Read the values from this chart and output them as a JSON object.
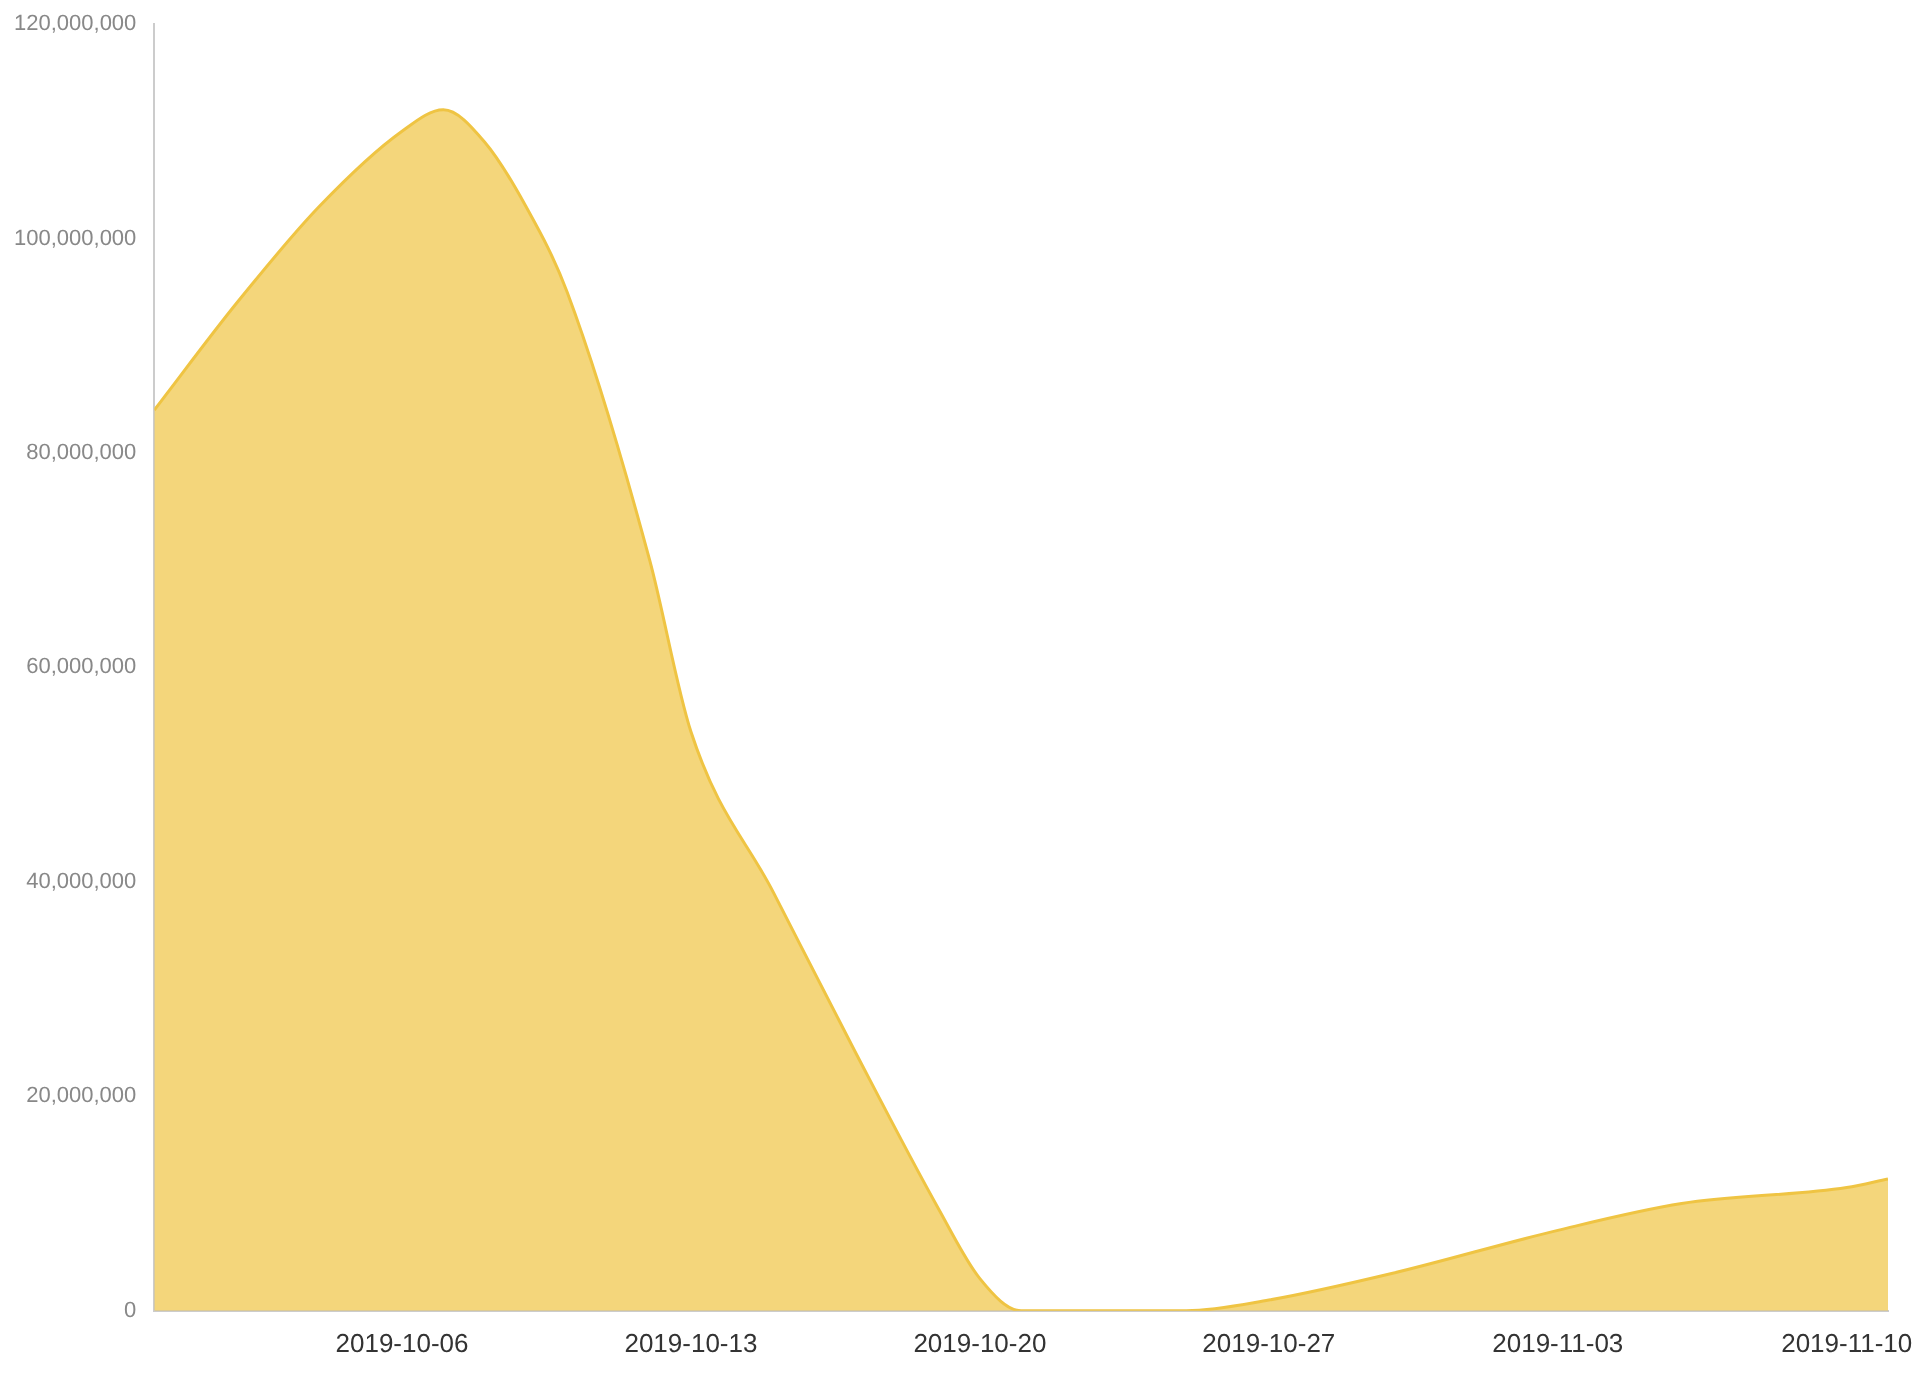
{
  "chart_data": {
    "type": "area",
    "x": [
      "2019-09-30",
      "2019-10-02",
      "2019-10-04",
      "2019-10-06",
      "2019-10-07",
      "2019-10-08",
      "2019-10-09",
      "2019-10-10",
      "2019-10-12",
      "2019-10-13",
      "2019-10-15",
      "2019-10-17",
      "2019-10-19",
      "2019-10-20",
      "2019-10-21",
      "2019-10-23",
      "2019-10-25",
      "2019-10-27",
      "2019-10-30",
      "2019-11-03",
      "2019-11-06",
      "2019-11-10",
      "2019-11-11"
    ],
    "series": [
      {
        "color": "#efc443",
        "values": [
          84000000,
          94000000,
          103000000,
          110000000,
          112000000,
          109000000,
          103000000,
          95000000,
          70000000,
          54000000,
          39000000,
          24000000,
          9500000,
          3000000,
          0,
          0,
          0,
          1000000,
          3500000,
          7500000,
          10000000,
          11500000,
          12300000
        ]
      }
    ],
    "xlim": [
      "2019-09-30",
      "2019-11-11"
    ],
    "xticks": [
      "2019-10-06",
      "2019-10-13",
      "2019-10-20",
      "2019-10-27",
      "2019-11-03",
      "2019-11-10"
    ],
    "ylim": [
      0,
      120000000
    ],
    "yticks": [
      0,
      {
        "value": 20000000,
        "label": "20,000,000"
      },
      {
        "value": 40000000,
        "label": "40,000,000"
      },
      {
        "value": 60000000,
        "label": "60,000,000"
      },
      {
        "value": 80000000,
        "label": "80,000,000"
      },
      {
        "value": 100000000,
        "label": "100,000,000"
      },
      {
        "value": 120000000,
        "label": "120,000,000"
      }
    ],
    "grid": false,
    "legend": false
  }
}
